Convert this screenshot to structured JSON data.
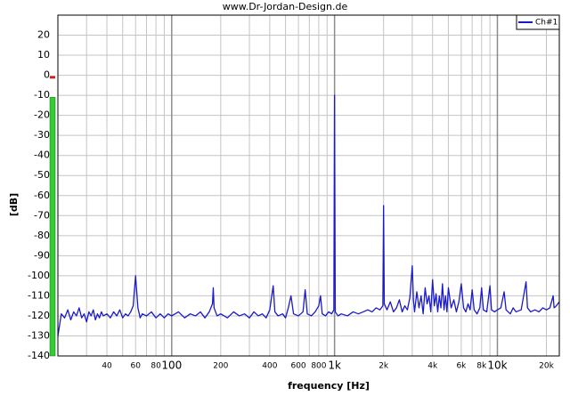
{
  "chart_data": {
    "type": "line",
    "title": "www.Dr-Jordan-Design.de",
    "xlabel": "frequency [Hz]",
    "ylabel": "[dB]",
    "log_x": true,
    "grid": true,
    "legend": "upper right",
    "xlim": [
      20,
      24000
    ],
    "ylim": [
      -140,
      30
    ],
    "yticks": [
      -140,
      -130,
      -120,
      -110,
      -100,
      -90,
      -80,
      -70,
      -60,
      -50,
      -40,
      -30,
      -20,
      -10,
      0,
      10,
      20
    ],
    "xticks": [
      40,
      60,
      80,
      100,
      200,
      400,
      600,
      800,
      {
        "value": 1000,
        "label": "1k"
      },
      {
        "value": 2000,
        "label": "2k"
      },
      {
        "value": 4000,
        "label": "4k"
      },
      {
        "value": 6000,
        "label": "6k"
      },
      {
        "value": 8000,
        "label": "8k"
      },
      {
        "value": 10000,
        "label": "10k"
      },
      {
        "value": 20000,
        "label": "20k"
      }
    ],
    "xgrid": [
      30,
      40,
      50,
      60,
      70,
      80,
      90,
      100,
      200,
      300,
      400,
      500,
      600,
      700,
      800,
      900,
      1000,
      2000,
      3000,
      4000,
      5000,
      6000,
      7000,
      8000,
      9000,
      10000,
      20000
    ],
    "level_meter": {
      "level": -11,
      "peak": -1,
      "color": "#33cc33",
      "peak_color": "#cc2222"
    },
    "x": [
      20,
      21,
      22,
      23,
      24,
      25,
      26,
      27,
      28,
      29,
      30,
      31,
      32,
      33,
      34,
      35,
      36,
      37,
      38,
      40,
      42,
      44,
      46,
      48,
      50,
      52,
      54,
      56,
      58,
      60,
      62,
      64,
      66,
      70,
      75,
      80,
      85,
      90,
      95,
      100,
      110,
      120,
      130,
      140,
      150,
      160,
      170,
      178,
      180,
      182,
      190,
      200,
      220,
      240,
      260,
      280,
      300,
      320,
      340,
      360,
      380,
      400,
      420,
      430,
      450,
      480,
      500,
      520,
      540,
      560,
      600,
      640,
      660,
      680,
      720,
      760,
      800,
      820,
      840,
      880,
      920,
      960,
      990,
      1000,
      1010,
      1050,
      1100,
      1200,
      1300,
      1400,
      1500,
      1600,
      1700,
      1800,
      1900,
      1980,
      2000,
      2020,
      2100,
      2200,
      2300,
      2400,
      2500,
      2600,
      2700,
      2800,
      2900,
      3000,
      3050,
      3100,
      3200,
      3300,
      3400,
      3500,
      3600,
      3700,
      3800,
      3900,
      4000,
      4100,
      4200,
      4300,
      4400,
      4500,
      4600,
      4700,
      4800,
      4900,
      5000,
      5200,
      5400,
      5600,
      5800,
      6000,
      6200,
      6400,
      6600,
      6800,
      7000,
      7200,
      7500,
      7800,
      8000,
      8200,
      8600,
      9000,
      9200,
      9600,
      10000,
      10500,
      11000,
      11300,
      12000,
      12500,
      13000,
      14000,
      15000,
      15300,
      16000,
      17000,
      18000,
      19000,
      20000,
      21000,
      22000,
      22300,
      23000,
      24000
    ],
    "series": [
      {
        "name": "Ch#1",
        "color": "#1a1acc",
        "values": [
          -130,
          -119,
          -121,
          -117,
          -122,
          -118,
          -120,
          -116,
          -121,
          -119,
          -123,
          -118,
          -120,
          -117,
          -122,
          -119,
          -121,
          -118,
          -120,
          -119,
          -121,
          -118,
          -120,
          -117,
          -121,
          -119,
          -120,
          -118,
          -115,
          -100,
          -116,
          -121,
          -119,
          -120,
          -118,
          -121,
          -119,
          -121,
          -119,
          -120,
          -118,
          -121,
          -119,
          -120,
          -118,
          -121,
          -118,
          -114,
          -106,
          -116,
          -120,
          -119,
          -121,
          -118,
          -120,
          -119,
          -121,
          -118,
          -120,
          -119,
          -121,
          -117,
          -105,
          -118,
          -120,
          -119,
          -121,
          -116,
          -110,
          -119,
          -120,
          -118,
          -107,
          -119,
          -120,
          -118,
          -115,
          -110,
          -119,
          -120,
          -118,
          -119,
          -117,
          -10,
          -118,
          -120,
          -119,
          -120,
          -118,
          -119,
          -118,
          -117,
          -118,
          -116,
          -117,
          -115,
          -65,
          -114,
          -117,
          -113,
          -118,
          -116,
          -112,
          -118,
          -115,
          -117,
          -111,
          -95,
          -112,
          -118,
          -108,
          -116,
          -110,
          -119,
          -106,
          -114,
          -110,
          -118,
          -102,
          -115,
          -109,
          -118,
          -110,
          -116,
          -104,
          -117,
          -110,
          -118,
          -106,
          -116,
          -112,
          -118,
          -113,
          -104,
          -116,
          -118,
          -114,
          -117,
          -107,
          -117,
          -119,
          -116,
          -106,
          -117,
          -118,
          -105,
          -117,
          -118,
          -117,
          -116,
          -108,
          -117,
          -119,
          -116,
          -118,
          -117,
          -103,
          -116,
          -118,
          -117,
          -118,
          -116,
          -117,
          -116,
          -110,
          -116,
          -115,
          -113
        ]
      }
    ]
  }
}
